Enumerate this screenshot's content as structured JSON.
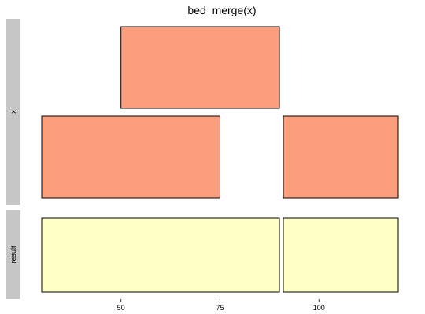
{
  "chart_data": {
    "type": "bed_intervals",
    "title": "bed_merge(x)",
    "xlim": [
      30,
      121
    ],
    "x_ticks": [
      50,
      75,
      100
    ],
    "x_tick_labels": [
      "50",
      "75",
      "100"
    ],
    "panels": [
      {
        "label": "x",
        "rows": 2,
        "fill": "#FC9E7B",
        "intervals": [
          {
            "start": 50,
            "end": 90,
            "row": 1
          },
          {
            "start": 30,
            "end": 75,
            "row": 0
          },
          {
            "start": 91,
            "end": 120,
            "row": 0
          }
        ]
      },
      {
        "label": "result",
        "rows": 1,
        "fill": "#FFFFC6",
        "intervals": [
          {
            "start": 30,
            "end": 90,
            "row": 0
          },
          {
            "start": 91,
            "end": 120,
            "row": 0
          }
        ]
      }
    ],
    "strip_color": "#C6C6C6",
    "outline_color": "#000000",
    "grid": false,
    "legend": "none"
  }
}
